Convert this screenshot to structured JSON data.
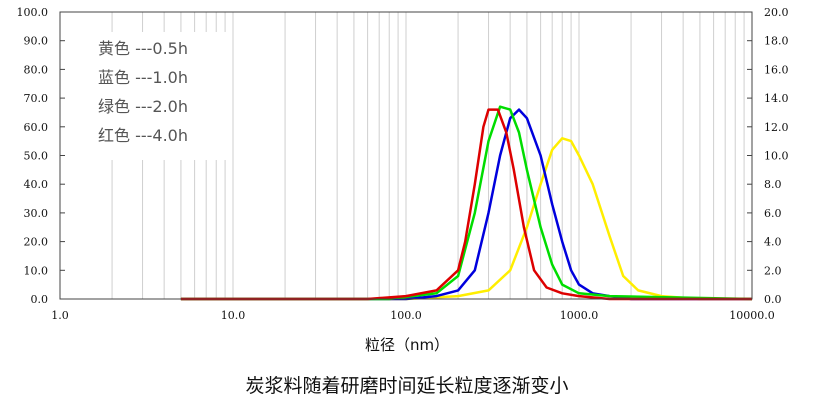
{
  "chart_data": {
    "type": "line",
    "xscale": "log",
    "xlim": [
      1,
      10000
    ],
    "ylim": [
      0,
      100
    ],
    "y2lim": [
      0,
      20
    ],
    "xlabel": "粒径（nm）",
    "caption": "炭浆料随着研磨时间延长粒度逐渐变小",
    "x_ticks": [
      {
        "value": 1,
        "label": "1.0"
      },
      {
        "value": 10,
        "label": "10.0"
      },
      {
        "value": 100,
        "label": "100.0"
      },
      {
        "value": 1000,
        "label": "1000.0"
      },
      {
        "value": 10000,
        "label": "10000.0"
      }
    ],
    "y_ticks": [
      "0.0",
      "10.0",
      "20.0",
      "30.0",
      "40.0",
      "50.0",
      "60.0",
      "70.0",
      "80.0",
      "90.0",
      "100.0"
    ],
    "y2_ticks": [
      "0.0",
      "2.0",
      "4.0",
      "6.0",
      "8.0",
      "10.0",
      "12.0",
      "14.0",
      "16.0",
      "18.0",
      "20.0"
    ],
    "grid": true,
    "legend": [
      {
        "text": "黄色 ---0.5h",
        "color": "#ffee00"
      },
      {
        "text": "蓝色 ---1.0h",
        "color": "#0000dd"
      },
      {
        "text": "绿色 ---2.0h",
        "color": "#00dd00"
      },
      {
        "text": "红色 ---4.0h",
        "color": "#dd0000"
      }
    ],
    "legend_position": "top-left",
    "series": [
      {
        "color": "#ffee00",
        "x": [
          5,
          100,
          200,
          300,
          400,
          500,
          600,
          700,
          800,
          900,
          1000,
          1200,
          1500,
          1800,
          2200,
          3000,
          5000,
          10000
        ],
        "y": [
          0,
          0,
          1,
          3,
          10,
          25,
          40,
          52,
          56,
          55,
          50,
          40,
          22,
          8,
          3,
          1,
          0,
          0
        ]
      },
      {
        "color": "#0000dd",
        "x": [
          5,
          100,
          150,
          200,
          250,
          300,
          350,
          400,
          450,
          500,
          600,
          700,
          800,
          900,
          1000,
          1200,
          1500,
          2000,
          10000
        ],
        "y": [
          0,
          0,
          1,
          3,
          10,
          30,
          50,
          63,
          66,
          63,
          50,
          33,
          20,
          10,
          5,
          2,
          1,
          0,
          0
        ]
      },
      {
        "color": "#00dd00",
        "x": [
          5,
          80,
          150,
          200,
          250,
          300,
          350,
          400,
          450,
          500,
          600,
          700,
          800,
          1000,
          1500,
          10000
        ],
        "y": [
          0,
          0,
          2,
          8,
          30,
          55,
          67,
          66,
          58,
          45,
          25,
          12,
          5,
          2,
          1,
          0
        ]
      },
      {
        "color": "#dd0000",
        "x": [
          5,
          60,
          100,
          150,
          200,
          220,
          250,
          280,
          300,
          340,
          380,
          420,
          480,
          550,
          650,
          800,
          1000,
          1500,
          10000
        ],
        "y": [
          0,
          0,
          1,
          3,
          10,
          20,
          40,
          60,
          66,
          66,
          58,
          45,
          25,
          10,
          4,
          2,
          1,
          0,
          0
        ]
      }
    ]
  }
}
